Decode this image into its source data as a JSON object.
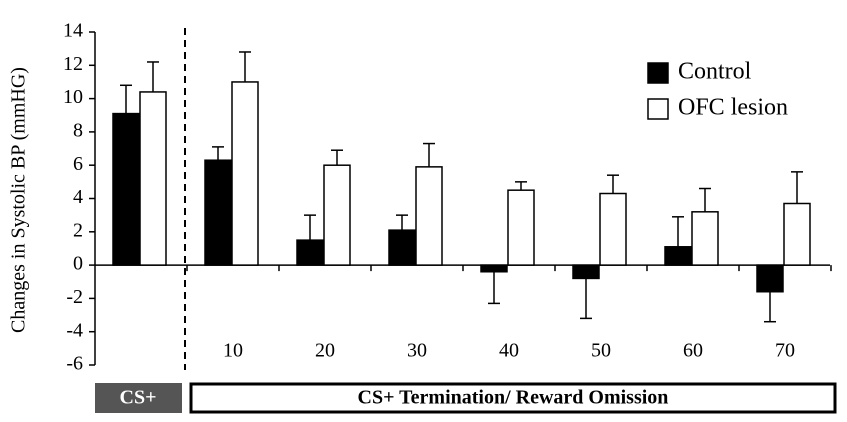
{
  "chart_data": {
    "type": "bar",
    "y_label": "Changes in Systolic BP (mmHG)",
    "categories": [
      null,
      "10",
      "20",
      "30",
      "40",
      "50",
      "60",
      "70"
    ],
    "series": [
      {
        "name": "Control",
        "color": "#000000",
        "values": [
          9.1,
          6.3,
          1.5,
          2.1,
          -0.4,
          -0.8,
          1.1,
          -1.6
        ],
        "errors": [
          1.7,
          0.8,
          1.5,
          0.9,
          1.9,
          2.4,
          1.8,
          1.8
        ]
      },
      {
        "name": "OFC lesion",
        "color": "#ffffff",
        "values": [
          10.4,
          11.0,
          6.0,
          5.9,
          4.5,
          4.3,
          3.2,
          3.7
        ],
        "errors": [
          1.8,
          1.8,
          0.9,
          1.4,
          0.5,
          1.1,
          1.4,
          1.9
        ]
      }
    ],
    "ylim": [
      -6,
      14
    ],
    "yticks": [
      -6,
      -4,
      -2,
      0,
      2,
      4,
      6,
      8,
      10,
      12,
      14
    ],
    "annotations": [
      "CS+",
      "CS+ Termination/ Reward Omission"
    ],
    "legend": "top-right"
  }
}
